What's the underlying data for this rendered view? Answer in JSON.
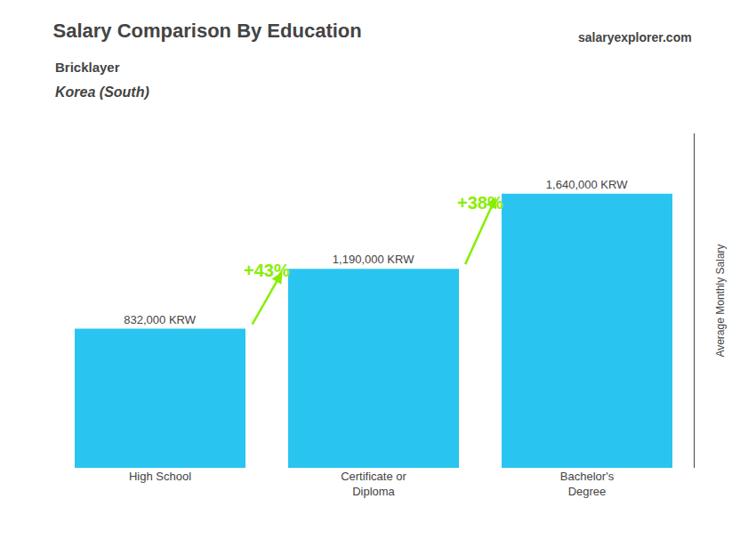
{
  "chart_data": {
    "type": "bar",
    "title": "Salary Comparison By Education",
    "subtitle": [
      "Bricklayer",
      "Korea (South)"
    ],
    "ylabel": "Average Monthly Salary",
    "categories": [
      "High School",
      "Certificate or\nDiploma",
      "Bachelor's\nDegree"
    ],
    "values": [
      832000,
      1190000,
      1640000
    ],
    "value_labels": [
      "832,000 KRW",
      "1,190,000 KRW",
      "1,640,000 KRW"
    ],
    "data_labels": true,
    "color": "#29c5f0",
    "ylim": [
      0,
      2000000
    ],
    "yticks": [],
    "tick_labels": "x",
    "grid": false,
    "annotations": [
      {
        "text": "+43%",
        "from": "High School",
        "to": "Certificate or\nDiploma",
        "color": "#88ee00"
      },
      {
        "text": "+38%",
        "from": "Certificate or\nDiploma",
        "to": "Bachelor's\nDegree",
        "color": "#88ee00"
      },
      {
        "text": "salaryexplorer.com"
      }
    ]
  }
}
